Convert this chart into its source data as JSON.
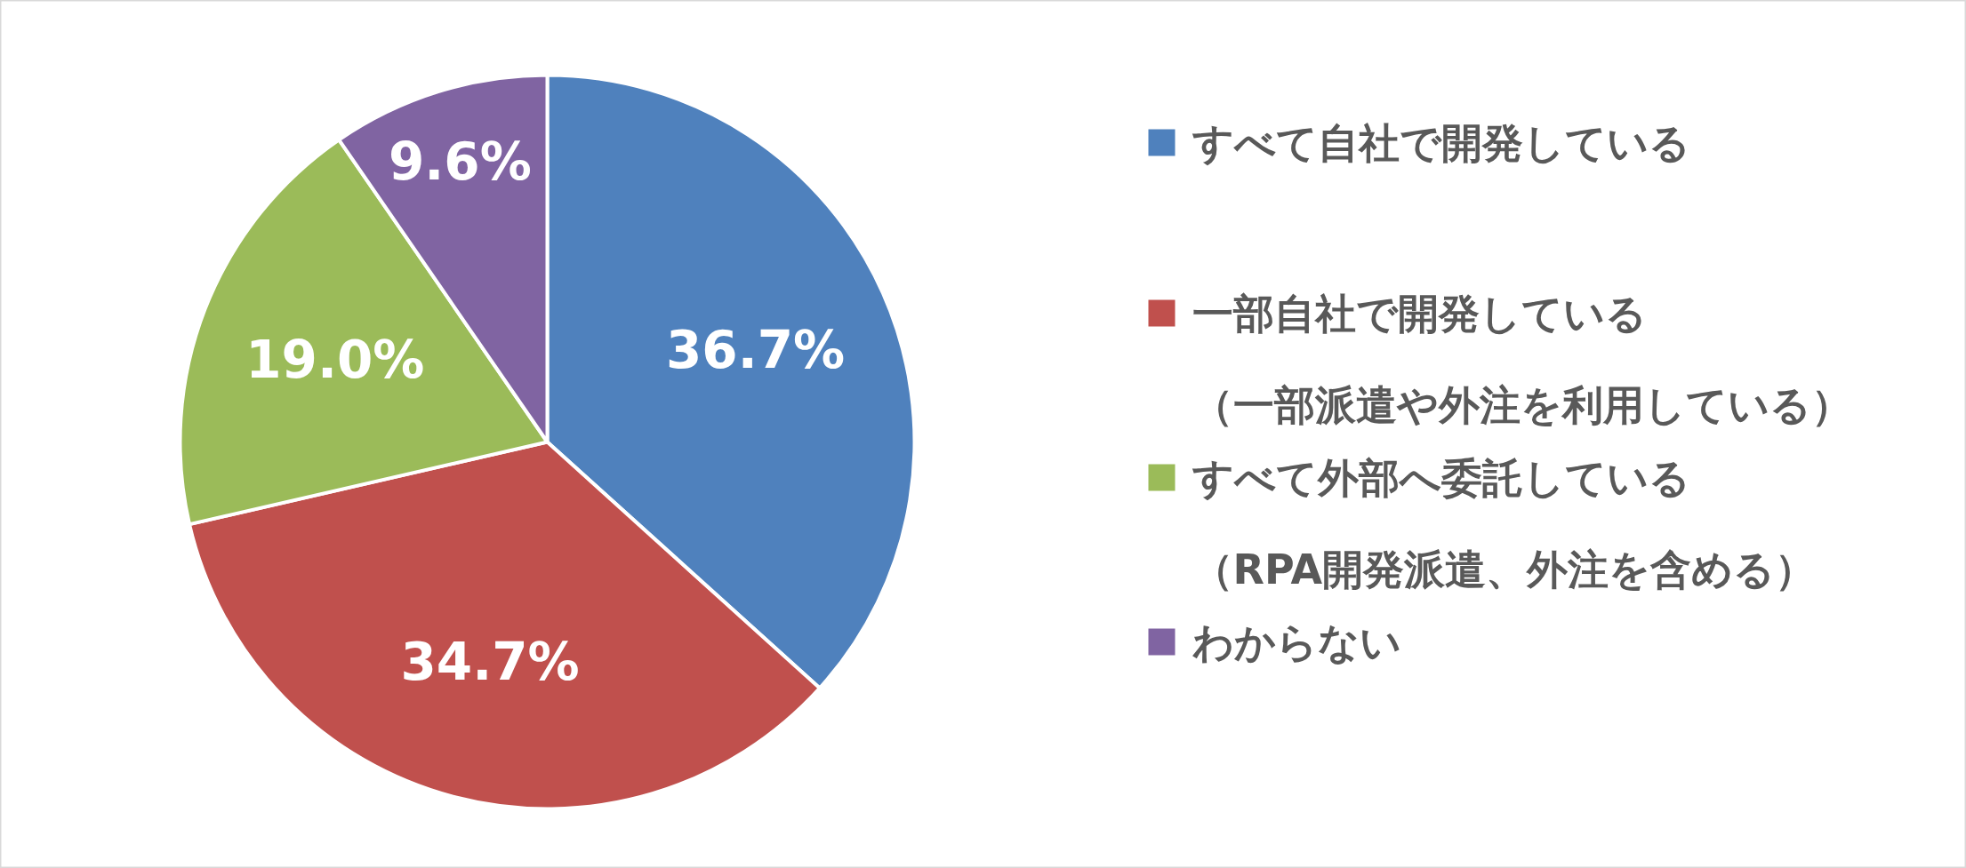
{
  "chart_data": {
    "type": "pie",
    "categories": [
      "すべて自社で開発している",
      "一部自社で開発している（一部派遣や外注を利用している）",
      "すべて外部へ委託している（RPA開発派遣、外注を含める）",
      "わからない"
    ],
    "values": [
      36.7,
      34.7,
      19.0,
      9.6
    ],
    "value_labels": [
      "36.7%",
      "34.7%",
      "19.0%",
      "9.6%"
    ],
    "colors": [
      "#4f81bd",
      "#c0504d",
      "#9bbb59",
      "#8064a2"
    ],
    "legend": "right"
  }
}
